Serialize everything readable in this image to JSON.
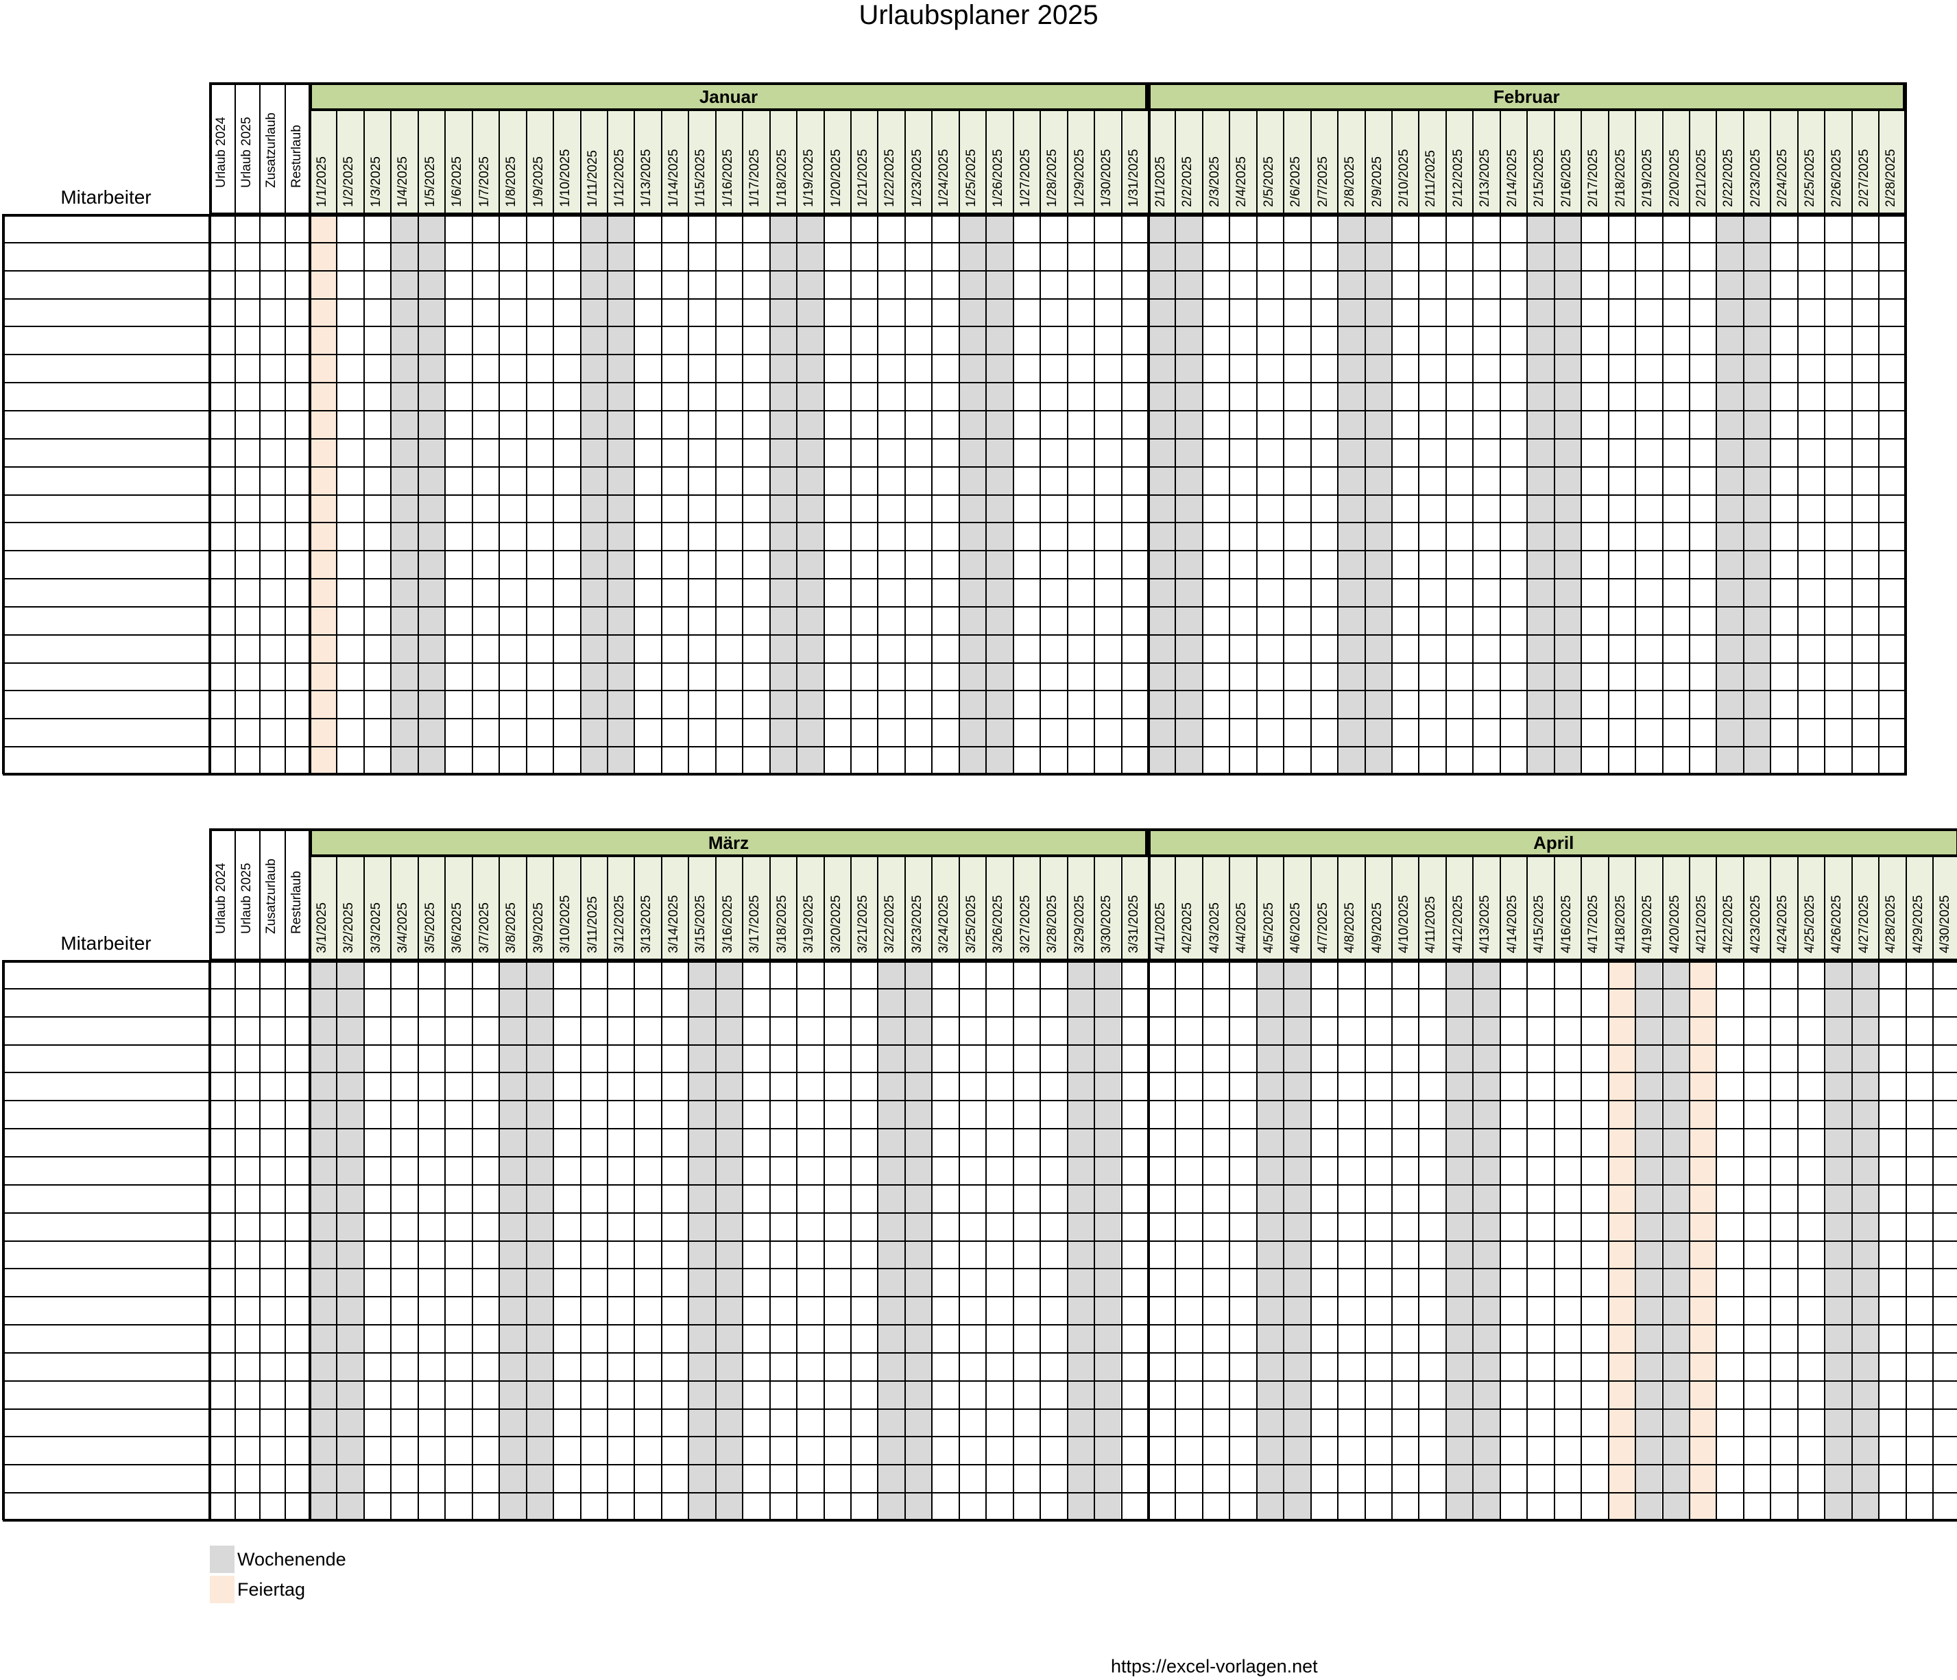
{
  "title": "Urlaubsplaner 2025",
  "blocks": [
    {
      "mitarbeiter_label": "Mitarbeiter",
      "extra_columns": [
        "Urlaub 2024",
        "Urlaub 2025",
        "Zusatzurlaub",
        "Resturlaub"
      ],
      "months": [
        {
          "name": "Januar",
          "num": 1,
          "days": 31,
          "first_weekday": 3,
          "holidays": [
            1
          ]
        },
        {
          "name": "Februar",
          "num": 2,
          "days": 28,
          "first_weekday": 6,
          "holidays": []
        }
      ]
    },
    {
      "mitarbeiter_label": "Mitarbeiter",
      "extra_columns": [
        "Urlaub 2024",
        "Urlaub 2025",
        "Zusatzurlaub",
        "Resturlaub"
      ],
      "months": [
        {
          "name": "März",
          "num": 3,
          "days": 31,
          "first_weekday": 6,
          "holidays": []
        },
        {
          "name": "April",
          "num": 4,
          "days": 30,
          "first_weekday": 2,
          "holidays": [
            18,
            21
          ]
        }
      ]
    }
  ],
  "year": 2025,
  "employee_rows": 20,
  "legend": [
    {
      "label": "Wochenende",
      "color": "#d9d9d9"
    },
    {
      "label": "Feiertag",
      "color": "#fce9d9"
    }
  ],
  "colors": {
    "month_header": "#c4d79b",
    "date_header": "#ebf1de",
    "weekend": "#d9d9d9",
    "holiday": "#fce9d9"
  },
  "footer_url": "https://excel-vorlagen.net"
}
